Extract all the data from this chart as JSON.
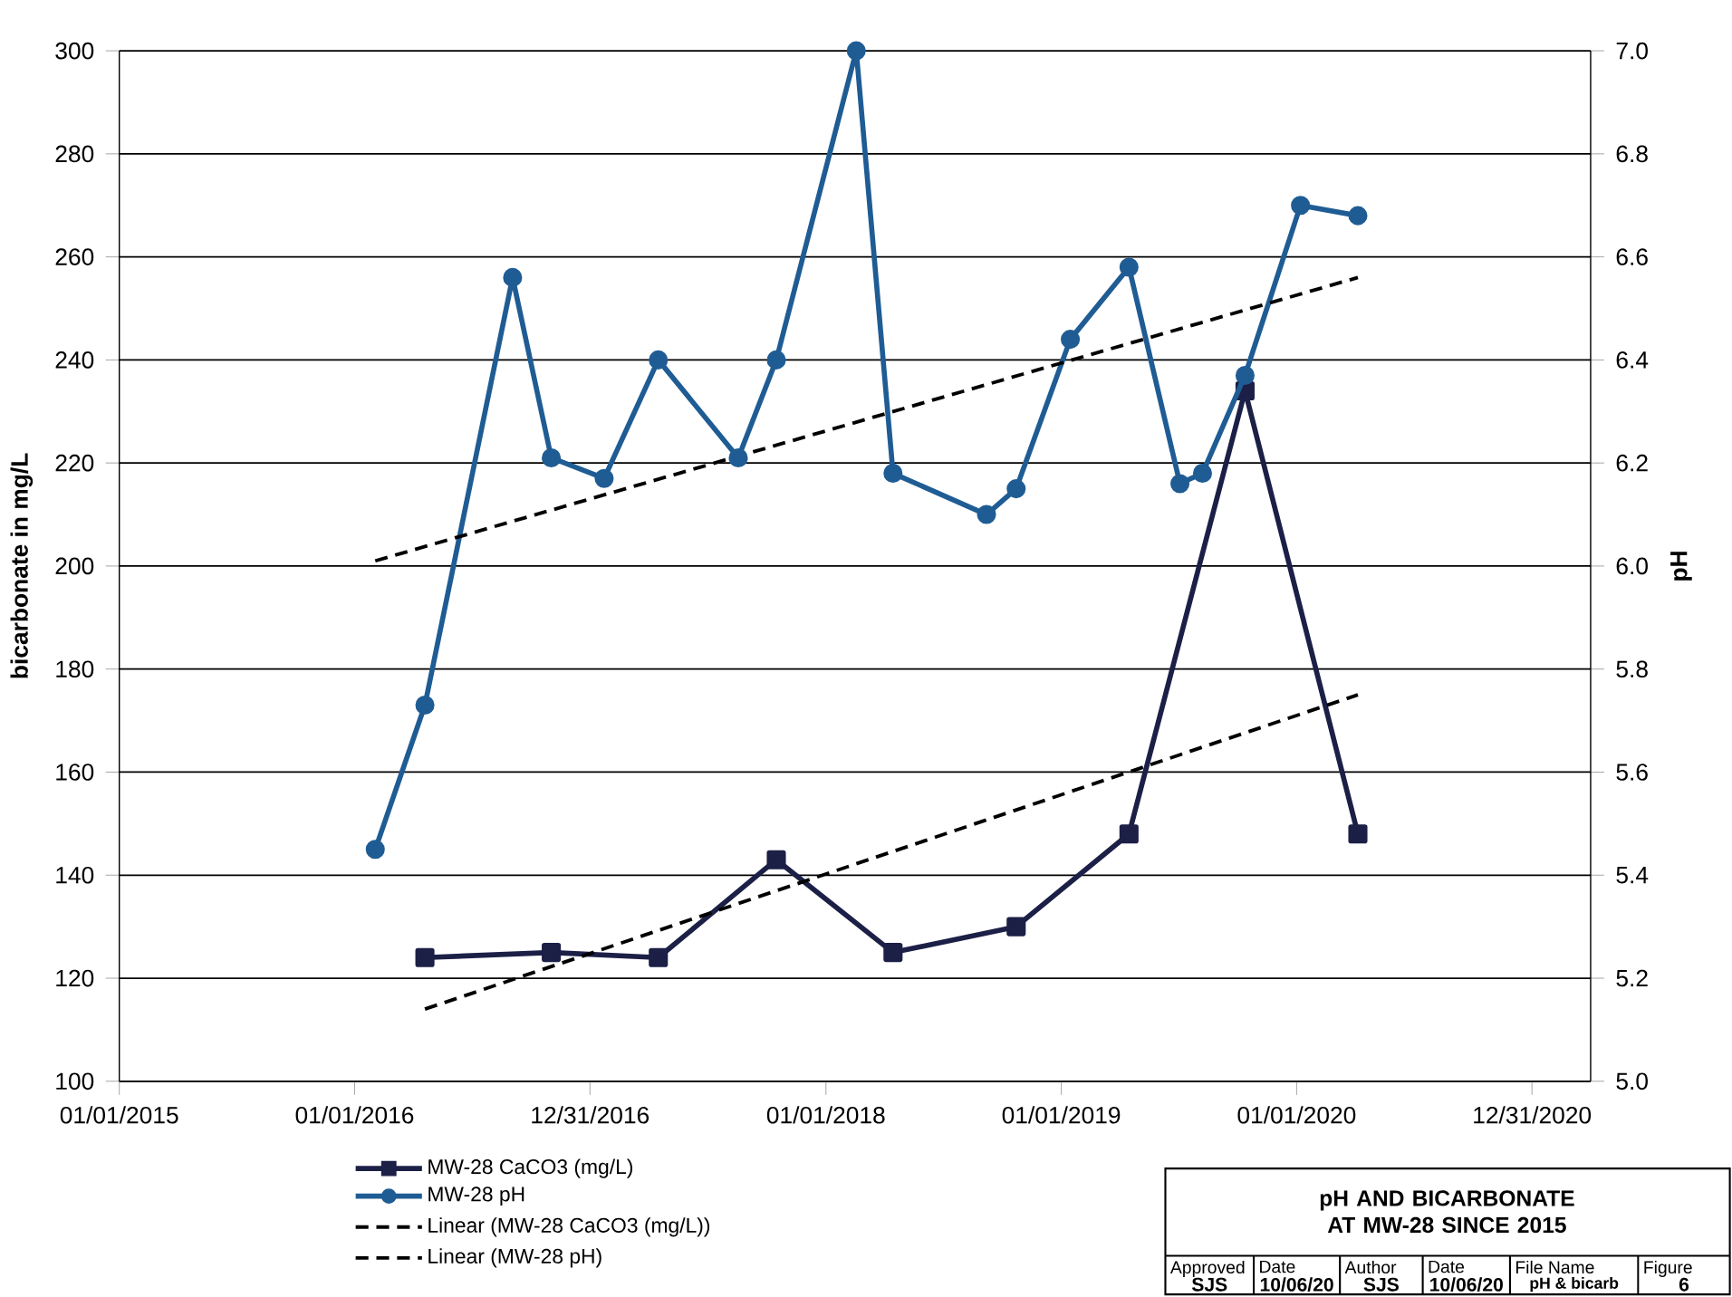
{
  "chart_data": {
    "type": "line",
    "title": "pH AND BICARBONATE AT MW-28 SINCE 2015",
    "ylabel": "bicarbonate in mg/L",
    "y2label": "pH",
    "xlim": [
      "2015-01-01",
      "2021-04-01"
    ],
    "xticks": [
      {
        "value": "2015-01-01",
        "label": "01/01/2015"
      },
      {
        "value": "2016-01-01",
        "label": "01/01/2016"
      },
      {
        "value": "2016-12-31",
        "label": "12/31/2016"
      },
      {
        "value": "2018-01-01",
        "label": "01/01/2018"
      },
      {
        "value": "2019-01-01",
        "label": "01/01/2019"
      },
      {
        "value": "2020-01-01",
        "label": "01/01/2020"
      },
      {
        "value": "2020-12-31",
        "label": "12/31/2020"
      }
    ],
    "ylim": [
      100,
      300
    ],
    "yticks": [
      100,
      120,
      140,
      160,
      180,
      200,
      220,
      240,
      260,
      280,
      300
    ],
    "y2lim": [
      5,
      7
    ],
    "y2ticks": [
      {
        "value": 5,
        "label": "5.0"
      },
      5.2,
      5.4,
      5.6,
      5.8,
      {
        "value": 6,
        "label": "6.0"
      },
      6.2,
      6.4,
      6.6,
      6.8,
      {
        "value": 7,
        "label": "7.0"
      }
    ],
    "grid": "y",
    "legend": "bottom",
    "series": [
      {
        "name": "MW-28 CaCO3 (mg/L)",
        "color": "#1c1f46",
        "marker": "square",
        "line_style": "solid",
        "x": [
          "2016-04-19",
          "2016-11-01",
          "2017-04-16",
          "2017-10-16",
          "2018-04-15",
          "2018-10-23",
          "2019-04-16",
          "2019-10-13",
          "2020-04-05"
        ],
        "values": [
          124,
          125,
          124,
          143,
          125,
          130,
          148,
          234,
          148
        ]
      },
      {
        "name": "MW-28 pH",
        "color": "#1f5c94",
        "marker": "circle",
        "line_style": "solid",
        "axis": "y2",
        "x": [
          "2016-02-02",
          "2016-04-19",
          "2016-09-02",
          "2016-11-01",
          "2017-01-22",
          "2017-04-16",
          "2017-08-18",
          "2017-10-16",
          "2018-02-17",
          "2018-04-15",
          "2018-09-07",
          "2018-10-23",
          "2019-01-15",
          "2019-04-16",
          "2019-07-04",
          "2019-08-08",
          "2019-10-13",
          "2020-01-07",
          "2020-04-05"
        ],
        "values": [
          5.45,
          5.73,
          6.56,
          6.21,
          6.17,
          6.4,
          6.21,
          6.4,
          7.0,
          6.18,
          6.1,
          6.15,
          6.44,
          6.58,
          6.16,
          6.18,
          6.37,
          6.7,
          6.68
        ]
      },
      {
        "name": "Linear (MW-28 CaCO3 (mg/L))",
        "color": "#000000",
        "marker": "none",
        "line_style": "dashed",
        "x": [
          "2016-04-19",
          "2020-04-05"
        ],
        "values": [
          114,
          175
        ]
      },
      {
        "name": "Linear (MW-28 pH)",
        "color": "#000000",
        "marker": "none",
        "line_style": "dashed",
        "axis": "y2",
        "x": [
          "2016-02-02",
          "2020-04-05"
        ],
        "values": [
          6.01,
          6.56
        ]
      }
    ],
    "annotations": [
      "Approved",
      "SJS",
      "Date",
      "10/06/20",
      "Author",
      "SJS",
      "Date",
      "10/06/20",
      "File Name",
      "pH & bicarb",
      "Figure",
      "6"
    ]
  }
}
